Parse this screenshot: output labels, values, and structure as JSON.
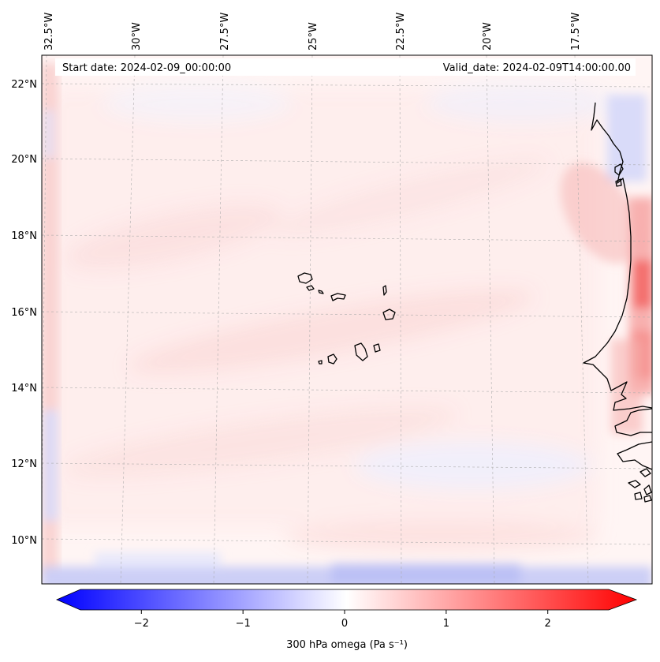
{
  "map": {
    "header": {
      "start_date": "Start date: 2024-02-09_00:00:00",
      "valid_date": "Valid_date: 2024-02-09T14:00:00.00"
    },
    "longitude_labels": [
      "32.5°W",
      "30°W",
      "27.5°W",
      "25°W",
      "22.5°W",
      "20°W",
      "17.5°W"
    ],
    "latitude_labels": [
      "22°N",
      "20°N",
      "18°N",
      "16°N",
      "14°N",
      "12°N",
      "10°N"
    ],
    "region": "Cape Verde islands and West African coast (Senegal, Gambia, Guinea-Bissau)",
    "field": "300 hPa omega"
  },
  "colorbar": {
    "label": "300 hPa omega (Pa s⁻¹)",
    "ticks": [
      "−2",
      "−1",
      "0",
      "1",
      "2"
    ],
    "tick_values": [
      -2,
      -1,
      0,
      1,
      2
    ],
    "range": [
      -2.6,
      2.6
    ],
    "low_color": "#0000ff",
    "mid_color": "#ffffff",
    "high_color": "#ff0000"
  }
}
